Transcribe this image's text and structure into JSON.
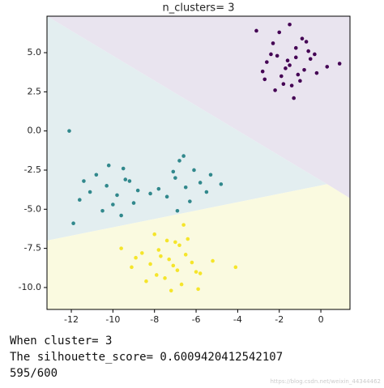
{
  "chart_data": {
    "type": "scatter",
    "title": "n_clusters= 3",
    "xlim": [
      -13.17,
      1.4
    ],
    "ylim": [
      -11.4,
      7.33
    ],
    "xticks": [
      -12,
      -10,
      -8,
      -6,
      -4,
      -2,
      0
    ],
    "yticks": [
      {
        "value": 5,
        "label": "5.0"
      },
      {
        "value": 2.5,
        "label": "2.5"
      },
      {
        "value": 0,
        "label": "0.0"
      },
      {
        "value": -2.5,
        "label": "-2.5"
      },
      {
        "value": -5,
        "label": "-5.0"
      },
      {
        "value": -7.5,
        "label": "-7.5"
      },
      {
        "value": -10,
        "label": "-10.0"
      }
    ],
    "regions": [
      {
        "color": "#e9e4ef",
        "polygon": [
          [
            -13.17,
            7.33
          ],
          [
            1.4,
            7.33
          ],
          [
            1.4,
            -4.3
          ],
          [
            0.3,
            -3.4
          ]
        ]
      },
      {
        "color": "#e3eef0",
        "polygon": [
          [
            -13.17,
            7.33
          ],
          [
            0.3,
            -3.4
          ],
          [
            -13.17,
            -7.0
          ]
        ]
      },
      {
        "color": "#fafae0",
        "polygon": [
          [
            -13.17,
            -7.0
          ],
          [
            0.3,
            -3.4
          ],
          [
            1.4,
            -4.3
          ],
          [
            1.4,
            -11.4
          ],
          [
            -13.17,
            -11.4
          ]
        ]
      }
    ],
    "series": [
      {
        "color": "#440154",
        "x": [
          -1.5,
          -2.1,
          -0.8,
          -1.2,
          -2.6,
          -1.9,
          -0.5,
          -1.0,
          -2.3,
          -1.7,
          -0.3,
          -1.4,
          -2.8,
          -0.9,
          -1.6,
          -2.0,
          -1.1,
          -0.6,
          -2.4,
          -1.3,
          0.9,
          -3.1,
          -1.8,
          -0.2,
          -1.5,
          -2.2,
          -0.7,
          -1.2,
          -2.7,
          0.3
        ],
        "values": [
          4.2,
          4.8,
          3.9,
          5.3,
          4.4,
          3.5,
          4.6,
          3.2,
          5.6,
          4.0,
          4.9,
          2.9,
          3.8,
          5.9,
          4.5,
          6.3,
          3.6,
          5.1,
          4.9,
          2.1,
          4.3,
          6.4,
          3.0,
          3.7,
          6.8,
          2.6,
          5.7,
          4.7,
          3.3,
          4.1
        ]
      },
      {
        "color": "#31888c",
        "x": [
          -10.3,
          -9.8,
          -10.8,
          -9.2,
          -11.1,
          -10.0,
          -9.5,
          -8.8,
          -11.6,
          -10.5,
          -9.0,
          -12.1,
          -11.9,
          -10.2,
          -9.6,
          -7.0,
          -6.5,
          -6.1,
          -7.4,
          -5.8,
          -6.8,
          -5.3,
          -7.8,
          -6.3,
          -5.5,
          -7.1,
          -6.6,
          -4.8,
          -6.9,
          -8.2,
          -9.4,
          -11.4
        ],
        "values": [
          -3.5,
          -4.1,
          -2.8,
          -3.2,
          -3.9,
          -4.7,
          -2.4,
          -3.8,
          -4.4,
          -5.1,
          -4.6,
          0.0,
          -5.9,
          -2.2,
          -5.4,
          -3.0,
          -3.6,
          -2.5,
          -4.2,
          -3.3,
          -1.9,
          -2.8,
          -3.7,
          -4.5,
          -3.9,
          -2.6,
          -1.6,
          -3.4,
          -5.1,
          -4.0,
          -3.1,
          -3.2
        ]
      },
      {
        "color": "#f5e52a",
        "x": [
          -7.3,
          -7.8,
          -6.9,
          -8.2,
          -6.5,
          -7.5,
          -8.6,
          -6.2,
          -7.0,
          -9.1,
          -5.8,
          -7.7,
          -8.0,
          -6.7,
          -7.2,
          -9.6,
          -5.2,
          -6.4,
          -8.4,
          -7.1,
          -6.8,
          -5.9,
          -8.9,
          -7.4,
          -6.0,
          -4.1,
          -7.9,
          -6.6
        ],
        "values": [
          -8.2,
          -7.6,
          -8.9,
          -8.5,
          -7.9,
          -9.4,
          -7.8,
          -8.4,
          -7.1,
          -8.7,
          -9.1,
          -8.0,
          -6.6,
          -9.8,
          -10.2,
          -7.5,
          -8.3,
          -6.9,
          -9.6,
          -8.6,
          -7.3,
          -10.1,
          -8.1,
          -7.0,
          -9.0,
          -8.7,
          -9.2,
          -6.0
        ]
      }
    ]
  },
  "output": {
    "lines": [
      "When cluster= 3",
      "The silhouette_score= 0.6009420412542107",
      "595/600"
    ]
  },
  "watermark": "https://blog.csdn.net/weixin_44344462"
}
